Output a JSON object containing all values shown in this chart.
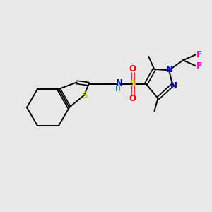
{
  "background_color": "#e8e8e8",
  "colors": {
    "bond": "#000000",
    "N": "#0000cc",
    "S_thio": "#cccc00",
    "S_sulfonyl": "#cccc00",
    "O": "#ff0000",
    "F": "#ff00cc",
    "H": "#008080"
  },
  "lw": 1.4,
  "lw_double": 1.2
}
